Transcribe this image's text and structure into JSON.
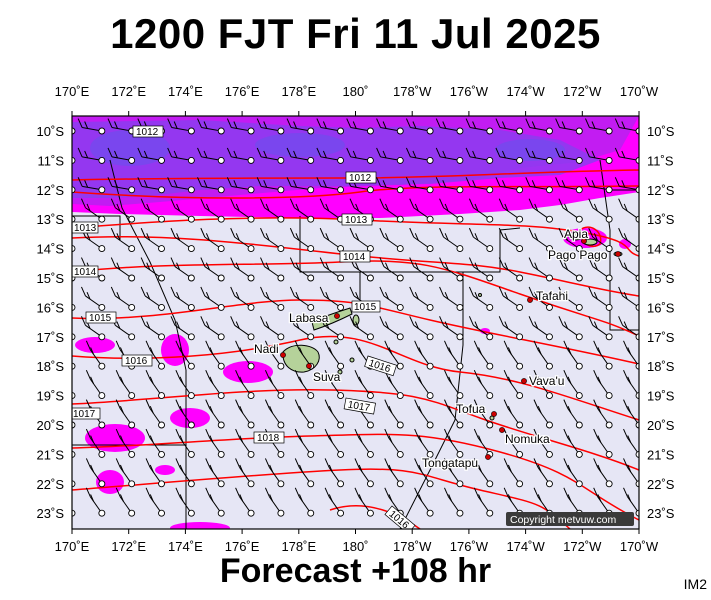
{
  "title": "1200 FJT Fri 11 Jul 2025",
  "footer": "Forecast +108 hr",
  "corner_code": "IM2",
  "copyright": "Copyright metvuw.com",
  "lon_labels": [
    "170˚E",
    "172˚E",
    "174˚E",
    "176˚E",
    "178˚E",
    "180˚",
    "178˚W",
    "176˚W",
    "174˚W",
    "172˚W",
    "170˚W"
  ],
  "lat_labels": [
    "10˚S",
    "11˚S",
    "12˚S",
    "13˚S",
    "14˚S",
    "15˚S",
    "16˚S",
    "17˚S",
    "18˚S",
    "19˚S",
    "20˚S",
    "21˚S",
    "22˚S",
    "23˚S"
  ],
  "isobar_labels": [
    "1012",
    "1012",
    "1013",
    "1014",
    "1015",
    "1016",
    "1017",
    "1018",
    "1013",
    "1014",
    "1015",
    "1016",
    "1017",
    "1016"
  ],
  "places": [
    "Apia",
    "Pago Pago",
    "Tafahi",
    "Labasa",
    "Nadi",
    "Suva",
    "Vava'u",
    "Tofua",
    "Nomuka",
    "Tongatapu"
  ],
  "colors": {
    "sea": "#e6e6f5",
    "rain_light": "#ff00ff",
    "rain_medium": "#c21cf2",
    "rain_heavy": "#8c3cf0",
    "isobar": "#ff0000",
    "land": "#b5d29a",
    "city": "#cc0000"
  }
}
